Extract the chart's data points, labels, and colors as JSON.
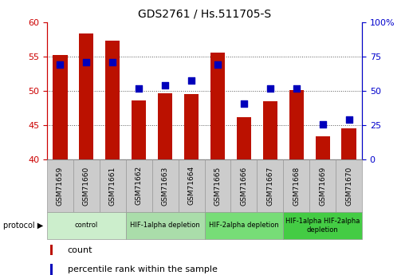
{
  "title": "GDS2761 / Hs.511705-S",
  "samples": [
    "GSM71659",
    "GSM71660",
    "GSM71661",
    "GSM71662",
    "GSM71663",
    "GSM71664",
    "GSM71665",
    "GSM71666",
    "GSM71667",
    "GSM71668",
    "GSM71669",
    "GSM71670"
  ],
  "bar_values": [
    55.2,
    58.3,
    57.3,
    48.6,
    49.6,
    49.5,
    55.6,
    46.2,
    48.5,
    50.1,
    43.4,
    44.5
  ],
  "dot_values_left": [
    53.8,
    54.2,
    54.1,
    50.3,
    50.8,
    51.5,
    53.8,
    48.1,
    50.3,
    50.3,
    45.1,
    45.8
  ],
  "bar_bottom": 40,
  "ylim_left": [
    40,
    60
  ],
  "ylim_right": [
    0,
    100
  ],
  "yticks_left": [
    40,
    45,
    50,
    55,
    60
  ],
  "yticks_right": [
    0,
    25,
    50,
    75,
    100
  ],
  "bar_color": "#bb1100",
  "dot_color": "#0000bb",
  "bar_width": 0.55,
  "dot_size": 35,
  "groups": [
    {
      "label": "control",
      "start": 0,
      "end": 3,
      "color": "#cceecc"
    },
    {
      "label": "HIF-1alpha depletion",
      "start": 3,
      "end": 6,
      "color": "#aaddaa"
    },
    {
      "label": "HIF-2alpha depletion",
      "start": 6,
      "end": 9,
      "color": "#77dd77"
    },
    {
      "label": "HIF-1alpha HIF-2alpha\ndepletion",
      "start": 9,
      "end": 12,
      "color": "#44cc44"
    }
  ],
  "left_tick_color": "#cc0000",
  "right_tick_color": "#0000cc",
  "grid_color": "#555555",
  "legend_count_label": "count",
  "legend_pct_label": "percentile rank within the sample",
  "bg_color": "#ffffff",
  "plot_bg": "#ffffff",
  "gray_box_color": "#cccccc",
  "gray_box_edge": "#999999"
}
